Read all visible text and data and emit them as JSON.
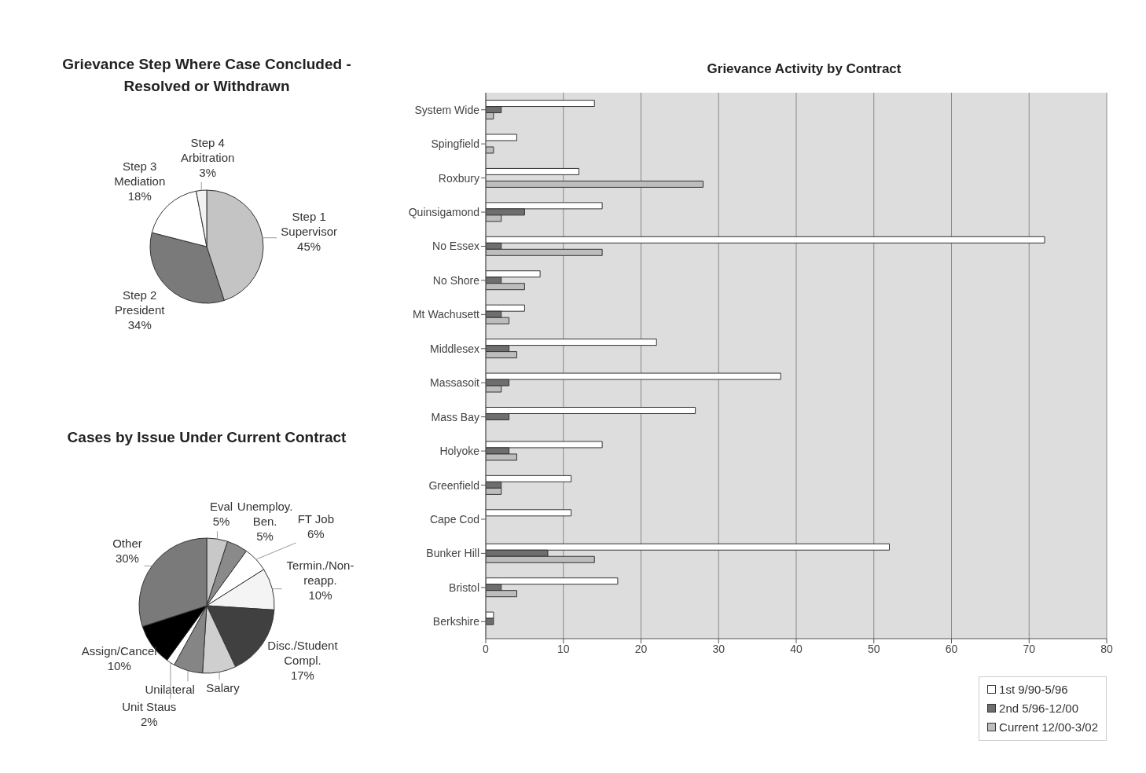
{
  "chart_data": [
    {
      "type": "pie",
      "title": "Grievance Step Where Case Concluded - Resolved or Withdrawn",
      "categories": [
        "Step 1 Supervisor",
        "Step 2 President",
        "Step 3 Mediation",
        "Step 4 Arbitration"
      ],
      "values": [
        45,
        34,
        18,
        3
      ],
      "colors": [
        "#c4c4c4",
        "#7a7a7a",
        "#ffffff",
        "#f2f2f2"
      ],
      "value_labels": [
        "45%",
        "34%",
        "18%",
        "3%"
      ],
      "legend": false
    },
    {
      "type": "pie",
      "title": "Cases by Issue Under Current Contract",
      "categories": [
        "Eval",
        "Unemploy. Ben.",
        "FT Job",
        "Termin./Non-reapp.",
        "Disc./Student Compl.",
        "Salary",
        "Unilateral",
        "Unit Staus",
        "Assign/Cancel",
        "Other"
      ],
      "values": [
        5,
        5,
        6,
        10,
        17,
        8,
        7,
        2,
        10,
        30
      ],
      "colors": [
        "#c8c8c8",
        "#8a8a8a",
        "#ffffff",
        "#f4f4f4",
        "#404040",
        "#cfcfcf",
        "#858585",
        "#ffffff",
        "#000000",
        "#7a7a7a"
      ],
      "value_labels": [
        "5%",
        "5%",
        "6%",
        "10%",
        "17%",
        null,
        null,
        "2%",
        "10%",
        "30%"
      ],
      "legend": false
    },
    {
      "type": "bar",
      "orientation": "horizontal",
      "title": "Grievance Activity by Contract",
      "categories": [
        "System Wide",
        "Spingfield",
        "Roxbury",
        "Quinsigamond",
        "No Essex",
        "No Shore",
        "Mt Wachusett",
        "Middlesex",
        "Massasoit",
        "Mass Bay",
        "Holyoke",
        "Greenfield",
        "Cape Cod",
        "Bunker Hill",
        "Bristol",
        "Berkshire"
      ],
      "series": [
        {
          "name": "1st 9/90-5/96",
          "color": "#ffffff",
          "values": [
            14,
            4,
            12,
            15,
            72,
            7,
            5,
            22,
            38,
            27,
            15,
            11,
            11,
            52,
            17,
            1
          ]
        },
        {
          "name": "2nd 5/96-12/00",
          "color": "#6e6e6e",
          "values": [
            2,
            null,
            null,
            5,
            2,
            2,
            2,
            3,
            3,
            3,
            3,
            2,
            null,
            8,
            2,
            1
          ]
        },
        {
          "name": "Current 12/00-3/02",
          "color": "#bdbdbd",
          "values": [
            1,
            1,
            28,
            2,
            15,
            5,
            3,
            4,
            2,
            null,
            4,
            2,
            null,
            14,
            4,
            null
          ]
        }
      ],
      "xlim": [
        0,
        80
      ],
      "xticks": [
        0,
        10,
        20,
        30,
        40,
        50,
        60,
        70,
        80
      ],
      "grid": "x",
      "legend": "bottom right"
    }
  ]
}
